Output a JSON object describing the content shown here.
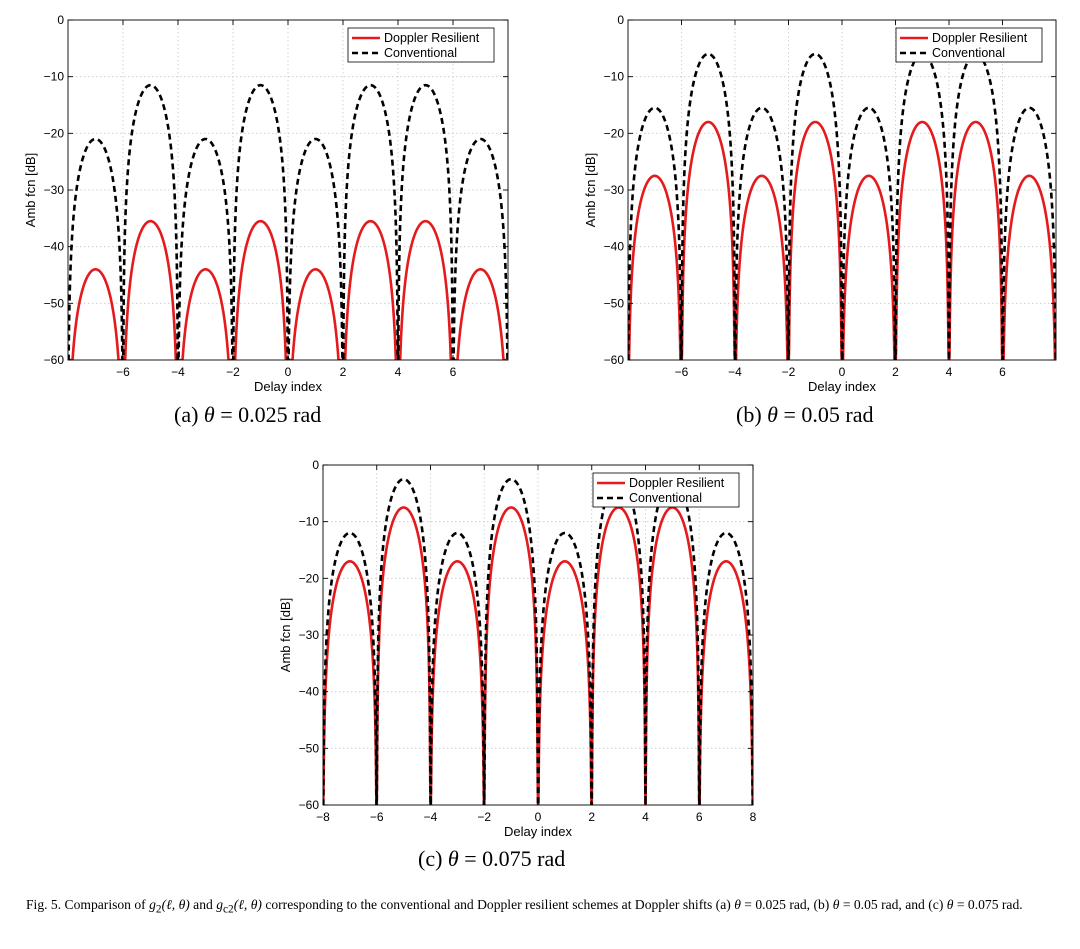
{
  "chart_data": [
    {
      "type": "line",
      "panel": "a",
      "xlabel": "Delay index",
      "ylabel": "Amb fcn [dB]",
      "xlim": [
        -8,
        8
      ],
      "ylim": [
        -60,
        0
      ],
      "xticks": [
        -6,
        -4,
        -2,
        0,
        2,
        4,
        6
      ],
      "xtick_labels": [
        "−6",
        "−4",
        "−2",
        "0",
        "2",
        "4",
        "6"
      ],
      "yticks": [
        0,
        -10,
        -20,
        -30,
        -40,
        -50,
        -60
      ],
      "ytick_labels": [
        "0",
        "−10",
        "−20",
        "−30",
        "−40",
        "−50",
        "−60"
      ],
      "grid": true,
      "legend_position": "top-right",
      "x": [
        -7,
        -5,
        -3,
        -1,
        1,
        3,
        5,
        7
      ],
      "series": [
        {
          "name": "Doppler Resilient",
          "color": "#e41a1c",
          "style": "solid",
          "peaks": [
            -44,
            -35.5,
            -44,
            -35.5,
            -44,
            -35.5,
            -35.5,
            -44
          ]
        },
        {
          "name": "Conventional",
          "color": "#000000",
          "style": "dashed",
          "peaks": [
            -21,
            -11.5,
            -21,
            -11.5,
            -21,
            -11.5,
            -11.5,
            -21
          ]
        }
      ]
    },
    {
      "type": "line",
      "panel": "b",
      "xlabel": "Delay index",
      "ylabel": "Amb fcn [dB]",
      "xlim": [
        -8,
        8
      ],
      "ylim": [
        -60,
        0
      ],
      "xticks": [
        -6,
        -4,
        -2,
        0,
        2,
        4,
        6
      ],
      "xtick_labels": [
        "−6",
        "−4",
        "−2",
        "0",
        "2",
        "4",
        "6"
      ],
      "yticks": [
        0,
        -10,
        -20,
        -30,
        -40,
        -50,
        -60
      ],
      "ytick_labels": [
        "0",
        "−10",
        "−20",
        "−30",
        "−40",
        "−50",
        "−60"
      ],
      "grid": true,
      "legend_position": "top-right",
      "x": [
        -7,
        -5,
        -3,
        -1,
        1,
        3,
        5,
        7
      ],
      "series": [
        {
          "name": "Doppler Resilient",
          "color": "#e41a1c",
          "style": "solid",
          "peaks": [
            -27.5,
            -18,
            -27.5,
            -18,
            -27.5,
            -18,
            -18,
            -27.5
          ]
        },
        {
          "name": "Conventional",
          "color": "#000000",
          "style": "dashed",
          "peaks": [
            -15.5,
            -6,
            -15.5,
            -6,
            -15.5,
            -6,
            -6,
            -15.5
          ]
        }
      ]
    },
    {
      "type": "line",
      "panel": "c",
      "xlabel": "Delay index",
      "ylabel": "Amb fcn [dB]",
      "xlim": [
        -8,
        8
      ],
      "ylim": [
        -60,
        0
      ],
      "xticks": [
        -8,
        -6,
        -4,
        -2,
        0,
        2,
        4,
        6,
        8
      ],
      "xtick_labels": [
        "−8",
        "−6",
        "−4",
        "−2",
        "0",
        "2",
        "4",
        "6",
        "8"
      ],
      "yticks": [
        0,
        -10,
        -20,
        -30,
        -40,
        -50,
        -60
      ],
      "ytick_labels": [
        "0",
        "−10",
        "−20",
        "−30",
        "−40",
        "−50",
        "−60"
      ],
      "grid": true,
      "legend_position": "top-right",
      "x": [
        -7,
        -5,
        -3,
        -1,
        1,
        3,
        5,
        7
      ],
      "series": [
        {
          "name": "Doppler Resilient",
          "color": "#e41a1c",
          "style": "solid",
          "peaks": [
            -17,
            -7.5,
            -17,
            -7.5,
            -17,
            -7.5,
            -7.5,
            -17
          ]
        },
        {
          "name": "Conventional",
          "color": "#000000",
          "style": "dashed",
          "peaks": [
            -12,
            -2.5,
            -12,
            -2.5,
            -12,
            -2.5,
            -2.5,
            -12
          ]
        }
      ]
    }
  ],
  "subcaptions": {
    "a": {
      "prefix": "(a) ",
      "theta": "θ",
      "rest": " = 0.025 rad"
    },
    "b": {
      "prefix": "(b) ",
      "theta": "θ",
      "rest": " = 0.05 rad"
    },
    "c": {
      "prefix": "(c) ",
      "theta": "θ",
      "rest": " = 0.075 rad"
    }
  },
  "caption": {
    "lead": "Fig. 5.   Comparison of ",
    "g2": "g",
    "g2_sub": "2",
    "g2_args": "(ℓ, θ)",
    "and": " and ",
    "gc2": "g",
    "gc2_sub": "c2",
    "gc2_args": "(ℓ, θ)",
    "middle": " corresponding to the conventional and Doppler resilient schemes at Doppler shifts (a) ",
    "theta": "θ",
    "a_val": " = 0.025 rad, (b) ",
    "b_val": " = 0.05 rad, and (c) ",
    "c_val": " = 0.075 rad."
  }
}
